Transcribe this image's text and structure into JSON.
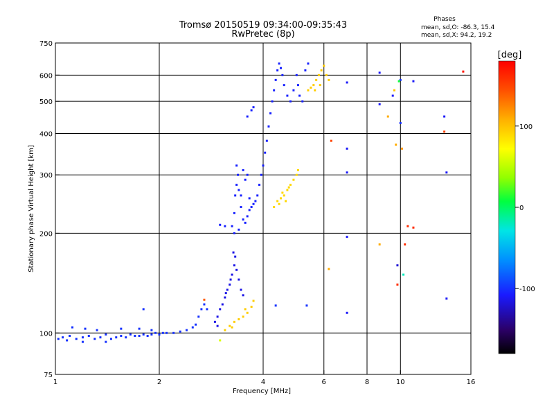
{
  "chart_data": {
    "type": "scatter",
    "title": "Tromsø 20150519 09:34:00-09:35:43",
    "subtitle": "RwPretec (8p)",
    "stats": {
      "heading": "Phases",
      "line1": "mean, sd,O: -86.3, 15.4",
      "line2": "mean, sd,X:  94.2, 19.2"
    },
    "xlabel": "Frequency [MHz]",
    "ylabel": "Stationary phase Virtual Height [km]",
    "x_scale": "log",
    "y_scale": "log",
    "xlim": [
      1,
      16
    ],
    "ylim": [
      75,
      750
    ],
    "x_ticks": [
      1,
      2,
      4,
      6,
      8,
      10,
      16
    ],
    "x_tick_labels": [
      "1",
      "2",
      "4",
      "6",
      "8",
      "10",
      "16"
    ],
    "y_ticks": [
      75,
      100,
      200,
      300,
      400,
      500,
      600,
      750
    ],
    "y_tick_labels": [
      "75",
      "100",
      "200",
      "300",
      "400",
      "500",
      "600",
      "750"
    ],
    "x_gridlines": [
      2,
      4,
      6,
      8,
      10
    ],
    "y_gridlines": [
      100,
      200,
      300,
      400,
      500,
      600
    ],
    "grid": true,
    "colorbar": {
      "label": "[deg]",
      "range": [
        -180,
        180
      ],
      "ticks": [
        100,
        0,
        -100
      ],
      "tick_labels": [
        "100",
        "0",
        "-100"
      ]
    },
    "series": [
      {
        "mode": "O",
        "points": [
          [
            1.02,
            96,
            -100
          ],
          [
            1.05,
            97,
            -100
          ],
          [
            1.08,
            95,
            -100
          ],
          [
            1.1,
            98,
            -100
          ],
          [
            1.15,
            96,
            -100
          ],
          [
            1.2,
            97,
            -100
          ],
          [
            1.25,
            98,
            -100
          ],
          [
            1.3,
            96,
            -100
          ],
          [
            1.35,
            97,
            -100
          ],
          [
            1.4,
            99,
            -100
          ],
          [
            1.45,
            96,
            -100
          ],
          [
            1.5,
            97,
            -100
          ],
          [
            1.55,
            98,
            -100
          ],
          [
            1.6,
            97,
            -100
          ],
          [
            1.65,
            99,
            -100
          ],
          [
            1.7,
            98,
            -100
          ],
          [
            1.75,
            98,
            -100
          ],
          [
            1.8,
            99,
            -100
          ],
          [
            1.85,
            98,
            -100
          ],
          [
            1.9,
            99,
            -100
          ],
          [
            1.95,
            100,
            -100
          ],
          [
            2.0,
            99,
            -100
          ],
          [
            2.05,
            100,
            -100
          ],
          [
            2.1,
            100,
            -100
          ],
          [
            2.2,
            100,
            -100
          ],
          [
            2.3,
            101,
            -100
          ],
          [
            2.4,
            102,
            -100
          ],
          [
            2.5,
            104,
            -100
          ],
          [
            2.55,
            106,
            -100
          ],
          [
            2.6,
            112,
            -100
          ],
          [
            2.65,
            118,
            -100
          ],
          [
            2.7,
            122,
            -100
          ],
          [
            2.75,
            118,
            -100
          ],
          [
            1.12,
            104,
            -100
          ],
          [
            1.22,
            103,
            -100
          ],
          [
            1.32,
            102,
            -100
          ],
          [
            1.55,
            103,
            -100
          ],
          [
            1.75,
            103,
            -100
          ],
          [
            1.8,
            118,
            -100
          ],
          [
            1.9,
            102,
            -100
          ],
          [
            1.2,
            94,
            -100
          ],
          [
            1.4,
            94,
            -100
          ],
          [
            2.9,
            108,
            -115
          ],
          [
            2.95,
            112,
            -115
          ],
          [
            3.0,
            118,
            -115
          ],
          [
            3.05,
            122,
            -115
          ],
          [
            3.1,
            128,
            -115
          ],
          [
            3.15,
            135,
            -115
          ],
          [
            3.2,
            140,
            -115
          ],
          [
            3.25,
            150,
            -115
          ],
          [
            3.3,
            160,
            -115
          ],
          [
            3.32,
            170,
            -115
          ],
          [
            3.35,
            155,
            -115
          ],
          [
            3.4,
            145,
            -115
          ],
          [
            3.45,
            135,
            -115
          ],
          [
            3.5,
            130,
            -115
          ],
          [
            3.28,
            175,
            -115
          ],
          [
            3.22,
            145,
            -115
          ],
          [
            3.12,
            132,
            -115
          ],
          [
            2.95,
            105,
            -115
          ],
          [
            3.25,
            210,
            -105
          ],
          [
            3.3,
            230,
            -105
          ],
          [
            3.32,
            260,
            -105
          ],
          [
            3.35,
            280,
            -105
          ],
          [
            3.38,
            300,
            -105
          ],
          [
            3.4,
            270,
            -105
          ],
          [
            3.45,
            240,
            -105
          ],
          [
            3.5,
            220,
            -105
          ],
          [
            3.55,
            215,
            -105
          ],
          [
            3.6,
            225,
            -105
          ],
          [
            3.65,
            235,
            -105
          ],
          [
            3.7,
            240,
            -105
          ],
          [
            3.75,
            245,
            -105
          ],
          [
            3.8,
            250,
            -105
          ],
          [
            3.85,
            260,
            -105
          ],
          [
            3.9,
            280,
            -105
          ],
          [
            3.95,
            300,
            -105
          ],
          [
            4.0,
            320,
            -105
          ],
          [
            4.05,
            350,
            -105
          ],
          [
            4.1,
            380,
            -105
          ],
          [
            4.15,
            420,
            -105
          ],
          [
            4.2,
            460,
            -105
          ],
          [
            4.25,
            500,
            -105
          ],
          [
            4.3,
            540,
            -105
          ],
          [
            4.35,
            580,
            -105
          ],
          [
            4.4,
            620,
            -105
          ],
          [
            4.45,
            650,
            -105
          ],
          [
            4.5,
            630,
            -105
          ],
          [
            4.55,
            600,
            -105
          ],
          [
            4.6,
            560,
            -105
          ],
          [
            4.7,
            520,
            -105
          ],
          [
            4.8,
            500,
            -105
          ],
          [
            4.9,
            540,
            -105
          ],
          [
            5.0,
            600,
            -105
          ],
          [
            5.05,
            560,
            -105
          ],
          [
            5.1,
            520,
            -105
          ],
          [
            5.2,
            500,
            -105
          ],
          [
            5.3,
            620,
            -105
          ],
          [
            5.4,
            650,
            -105
          ],
          [
            3.3,
            200,
            -105
          ],
          [
            3.4,
            205,
            -105
          ],
          [
            3.55,
            290,
            -105
          ],
          [
            3.6,
            300,
            -105
          ],
          [
            3.5,
            310,
            -105
          ],
          [
            3.35,
            320,
            -105
          ],
          [
            3.7,
            470,
            -105
          ],
          [
            3.75,
            480,
            -105
          ],
          [
            3.6,
            450,
            -105
          ],
          [
            3.0,
            212,
            -105
          ],
          [
            3.1,
            210,
            -105
          ],
          [
            3.45,
            260,
            -105
          ],
          [
            3.65,
            255,
            -105
          ]
        ]
      },
      {
        "mode": "X",
        "points": [
          [
            3.1,
            102,
            95
          ],
          [
            3.2,
            105,
            95
          ],
          [
            3.3,
            108,
            95
          ],
          [
            3.4,
            110,
            95
          ],
          [
            3.5,
            112,
            95
          ],
          [
            3.6,
            115,
            95
          ],
          [
            3.7,
            120,
            95
          ],
          [
            3.75,
            125,
            95
          ],
          [
            3.55,
            118,
            95
          ],
          [
            3.25,
            104,
            95
          ],
          [
            4.3,
            240,
            90
          ],
          [
            4.4,
            250,
            90
          ],
          [
            4.5,
            255,
            90
          ],
          [
            4.6,
            260,
            90
          ],
          [
            4.7,
            270,
            90
          ],
          [
            4.8,
            280,
            90
          ],
          [
            4.9,
            290,
            90
          ],
          [
            5.0,
            300,
            90
          ],
          [
            5.05,
            310,
            90
          ],
          [
            4.55,
            265,
            90
          ],
          [
            4.75,
            275,
            90
          ],
          [
            4.45,
            245,
            90
          ],
          [
            4.65,
            250,
            90
          ],
          [
            5.4,
            540,
            95
          ],
          [
            5.5,
            550,
            95
          ],
          [
            5.6,
            560,
            95
          ],
          [
            5.7,
            580,
            95
          ],
          [
            5.8,
            600,
            95
          ],
          [
            5.9,
            620,
            95
          ],
          [
            6.0,
            640,
            95
          ],
          [
            6.1,
            600,
            95
          ],
          [
            6.2,
            580,
            95
          ],
          [
            5.65,
            540,
            95
          ],
          [
            5.85,
            560,
            95
          ],
          [
            2.7,
            126,
            140
          ],
          [
            3.0,
            95,
            60
          ]
        ]
      },
      {
        "mode": "scattered",
        "points": [
          [
            7.0,
            570,
            -110
          ],
          [
            7.0,
            360,
            -110
          ],
          [
            7.0,
            305,
            -110
          ],
          [
            7.0,
            195,
            -110
          ],
          [
            7.0,
            115,
            -110
          ],
          [
            8.7,
            610,
            -110
          ],
          [
            8.7,
            490,
            -110
          ],
          [
            9.5,
            520,
            -110
          ],
          [
            9.8,
            160,
            -120
          ],
          [
            10.0,
            580,
            -100
          ],
          [
            10.0,
            430,
            -100
          ],
          [
            10.9,
            575,
            -110
          ],
          [
            13.4,
            450,
            -110
          ],
          [
            13.6,
            305,
            -110
          ],
          [
            13.6,
            127,
            -110
          ],
          [
            4.35,
            121,
            -100
          ],
          [
            5.35,
            121,
            -100
          ],
          [
            8.7,
            185,
            110
          ],
          [
            9.7,
            370,
            110
          ],
          [
            10.1,
            360,
            120
          ],
          [
            10.2,
            150,
            -20
          ],
          [
            9.8,
            140,
            160
          ],
          [
            10.3,
            185,
            160
          ],
          [
            10.5,
            210,
            160
          ],
          [
            10.9,
            208,
            160
          ],
          [
            13.4,
            405,
            150
          ],
          [
            15.2,
            615,
            170
          ],
          [
            6.2,
            156,
            110
          ],
          [
            6.3,
            380,
            150
          ],
          [
            9.2,
            450,
            110
          ],
          [
            9.6,
            540,
            100
          ],
          [
            9.9,
            575,
            10
          ]
        ]
      }
    ]
  }
}
